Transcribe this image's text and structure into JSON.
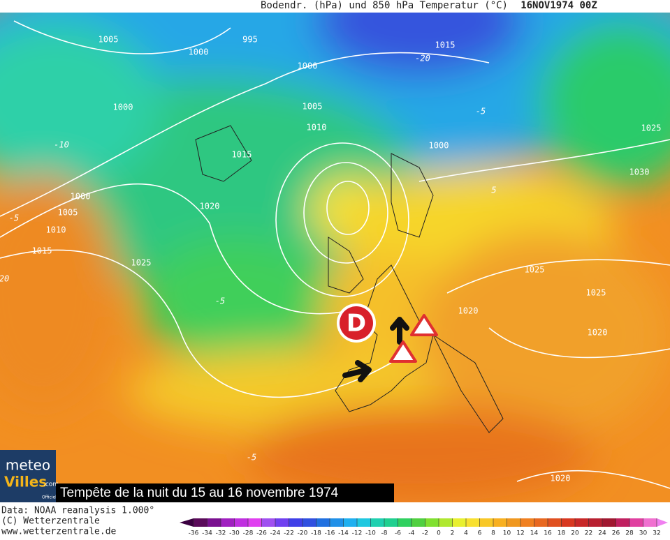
{
  "header": {
    "title": "Bodendr. (hPa) und 850 hPa Temperatur (°C)",
    "date": "16NOV1974 00Z"
  },
  "map": {
    "isobar_labels": [
      1005,
      995,
      1000,
      1000,
      1005,
      1000,
      1010,
      1015,
      1000,
      1015,
      1025,
      1030,
      1020,
      1000,
      1005,
      1010,
      1015,
      1025,
      1025,
      1025,
      1020,
      1020,
      1020
    ],
    "temperature_labels": [
      -20,
      -10,
      -5,
      -5,
      -5,
      5,
      20,
      -5
    ],
    "low_marker": "D"
  },
  "logo": {
    "line1": "meteo",
    "line2": "Villes",
    "suffix": ".com",
    "tagline": "Officiel"
  },
  "caption": "Tempête de la nuit du 15 au 16 novembre 1974",
  "credits": [
    "Data: NOAA reanalysis 1.000°",
    "(C) Wetterzentrale",
    "www.wetterzentrale.de"
  ],
  "colorbar": {
    "ticks": [
      -36,
      -34,
      -32,
      -30,
      -28,
      -26,
      -24,
      -22,
      -20,
      -18,
      -16,
      -14,
      -12,
      -10,
      -8,
      -6,
      -4,
      -2,
      0,
      2,
      4,
      6,
      8,
      10,
      12,
      14,
      16,
      18,
      20,
      22,
      24,
      26,
      28,
      30,
      32
    ]
  }
}
